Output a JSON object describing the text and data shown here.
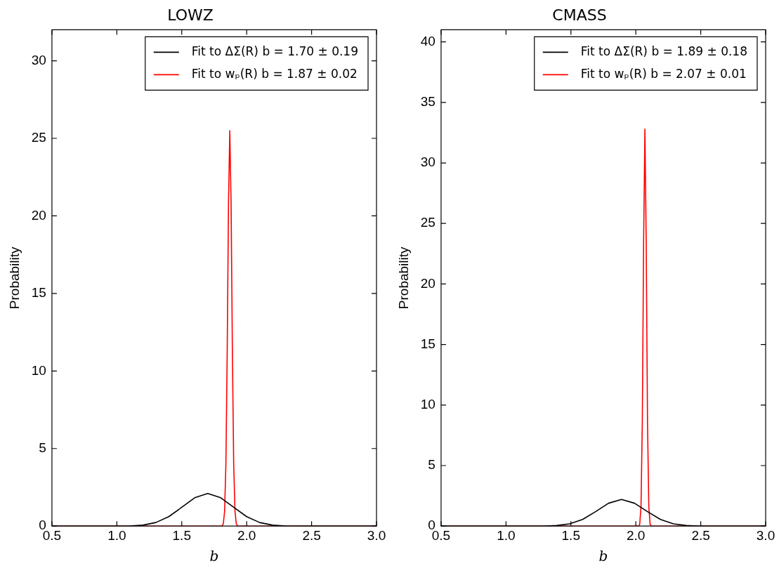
{
  "chart_data": [
    {
      "type": "line",
      "title": "LOWZ",
      "xlabel": "b",
      "ylabel": "Probability",
      "xlim": [
        0.5,
        3.0
      ],
      "xticks": [
        0.5,
        {
          "value": 1,
          "label": "1.0"
        },
        1.5,
        {
          "value": 2,
          "label": "2.0"
        },
        2.5,
        {
          "value": 3,
          "label": "3.0"
        }
      ],
      "ylim": [
        0,
        32
      ],
      "yticks": [
        0,
        5,
        10,
        15,
        20,
        25,
        30
      ],
      "grid": false,
      "legend": "top right",
      "marker": "none",
      "line_style": "solid",
      "series": [
        {
          "name": "Fit to ΔΣ(R) b = 1.70 ± 0.19",
          "color": "#000000",
          "x": [
            0.5,
            1.0,
            1.1,
            1.2,
            1.3,
            1.4,
            1.5,
            1.6,
            1.7,
            1.8,
            1.9,
            2.0,
            2.1,
            2.2,
            2.3,
            2.4,
            3.0
          ],
          "values": [
            0,
            0,
            0.01,
            0.06,
            0.23,
            0.61,
            1.21,
            1.83,
            2.1,
            1.83,
            1.21,
            0.61,
            0.23,
            0.06,
            0.01,
            0,
            0
          ]
        },
        {
          "name": "Fit to wₚ(R) b = 1.87 ± 0.02",
          "color": "#ff0000",
          "x": [
            0.5,
            1.81,
            1.82,
            1.83,
            1.84,
            1.85,
            1.86,
            1.87,
            1.88,
            1.89,
            1.9,
            1.91,
            1.92,
            1.93,
            3.0
          ],
          "values": [
            0,
            0,
            0.15,
            0.95,
            4.0,
            11.2,
            20.8,
            25.5,
            20.8,
            11.2,
            4.0,
            0.95,
            0.15,
            0,
            0
          ]
        }
      ]
    },
    {
      "type": "line",
      "title": "CMASS",
      "xlabel": "b",
      "ylabel": "Probability",
      "xlim": [
        0.5,
        3.0
      ],
      "xticks": [
        0.5,
        {
          "value": 1,
          "label": "1.0"
        },
        1.5,
        {
          "value": 2,
          "label": "2.0"
        },
        2.5,
        {
          "value": 3,
          "label": "3.0"
        }
      ],
      "ylim": [
        0,
        41
      ],
      "yticks": [
        0,
        5,
        10,
        15,
        20,
        25,
        30,
        35,
        40
      ],
      "grid": false,
      "legend": "top right",
      "marker": "none",
      "line_style": "solid",
      "series": [
        {
          "name": "Fit to ΔΣ(R) b = 1.89 ± 0.18",
          "color": "#000000",
          "x": [
            0.5,
            1.29,
            1.39,
            1.49,
            1.59,
            1.69,
            1.79,
            1.89,
            1.99,
            2.09,
            2.19,
            2.29,
            2.39,
            2.49,
            3.0
          ],
          "values": [
            0,
            0,
            0.05,
            0.19,
            0.55,
            1.19,
            1.89,
            2.2,
            1.89,
            1.19,
            0.55,
            0.19,
            0.05,
            0,
            0
          ]
        },
        {
          "name": "Fit to wₚ(R) b = 2.07 ± 0.01",
          "color": "#ff0000",
          "x": [
            0.5,
            2.02,
            2.03,
            2.04,
            2.05,
            2.06,
            2.07,
            2.08,
            2.09,
            2.1,
            2.11,
            2.12,
            3.0
          ],
          "values": [
            0,
            0,
            0.15,
            1.6,
            8.6,
            23.4,
            32.8,
            23.4,
            8.6,
            1.6,
            0.15,
            0,
            0
          ]
        }
      ]
    }
  ]
}
